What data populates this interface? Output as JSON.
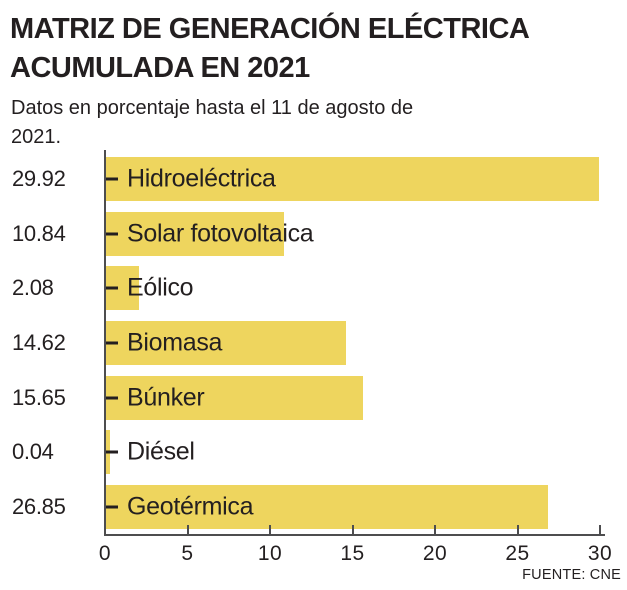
{
  "header": {
    "title": "MATRIZ DE GENERACIÓN ELÉCTRICA ACUMULADA EN 2021",
    "subtitle": "Datos en porcentaje hasta el 11 de agosto de 2021."
  },
  "chart_data": {
    "type": "bar",
    "orientation": "horizontal",
    "title": "MATRIZ DE GENERACIÓN ELÉCTRICA ACUMULADA EN 2021",
    "subtitle": "Datos en porcentaje hasta el 11 de agosto de 2021.",
    "categories": [
      "Hidroeléctrica",
      "Solar fotovoltaica",
      "Eólico",
      "Biomasa",
      "Búnker",
      "Diésel",
      "Geotérmica"
    ],
    "values": [
      29.92,
      10.84,
      2.08,
      14.62,
      15.65,
      0.04,
      26.85
    ],
    "value_labels": [
      "29.92",
      "10.84",
      "2.08",
      "14.62",
      "15.65",
      "0.04",
      "26.85"
    ],
    "xlabel": "",
    "ylabel": "",
    "xlim": [
      0,
      30
    ],
    "x_ticks": [
      0,
      5,
      10,
      15,
      20,
      25,
      30
    ],
    "grid": false,
    "legend": false,
    "bar_color": "#eed55e",
    "axis_color": "#4d4d4f",
    "text_color": "#231f20",
    "source": "FUENTE: CNE"
  },
  "footer": {
    "source": "FUENTE: CNE"
  }
}
